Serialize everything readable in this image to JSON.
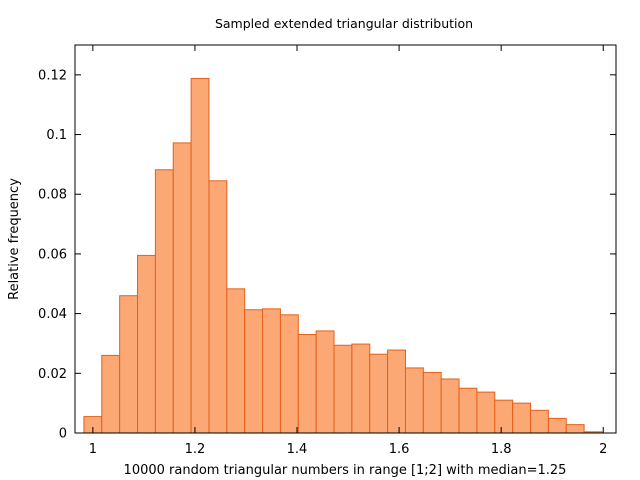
{
  "chart_data": {
    "type": "bar",
    "title": "Sampled extended triangular distribution",
    "xlabel": "10000 random triangular numbers in range [1;2] with median=1.25",
    "ylabel": "Relative frequency",
    "xlim": [
      0.965,
      2.025
    ],
    "ylim": [
      0,
      0.13
    ],
    "xticks": [
      "1",
      "1.2",
      "1.4",
      "1.6",
      "1.8",
      "2"
    ],
    "xtick_values": [
      1,
      1.2,
      1.4,
      1.6,
      1.8,
      2
    ],
    "yticks": [
      "0",
      "0.02",
      "0.04",
      "0.06",
      "0.08",
      "0.1",
      "0.12"
    ],
    "ytick_values": [
      0,
      0.02,
      0.04,
      0.06,
      0.08,
      0.1,
      0.12
    ],
    "bin_width": 0.035,
    "bin_centers": [
      1.0,
      1.035,
      1.07,
      1.105,
      1.14,
      1.175,
      1.21,
      1.245,
      1.28,
      1.315,
      1.35,
      1.385,
      1.42,
      1.455,
      1.49,
      1.525,
      1.56,
      1.595,
      1.63,
      1.665,
      1.7,
      1.735,
      1.77,
      1.805,
      1.84,
      1.875,
      1.91,
      1.945,
      1.98
    ],
    "values": [
      0.0055,
      0.026,
      0.046,
      0.0595,
      0.0882,
      0.0972,
      0.1188,
      0.0845,
      0.0483,
      0.0413,
      0.0416,
      0.0396,
      0.033,
      0.0342,
      0.0294,
      0.0298,
      0.0264,
      0.0278,
      0.0218,
      0.0203,
      0.0181,
      0.015,
      0.0137,
      0.011,
      0.01,
      0.0076,
      0.0049,
      0.0028,
      0.0004
    ],
    "grid": false,
    "legend": "none",
    "colors": {
      "bar_fill": "#fba874",
      "bar_stroke": "#e5601a",
      "axis": "#000000"
    }
  }
}
